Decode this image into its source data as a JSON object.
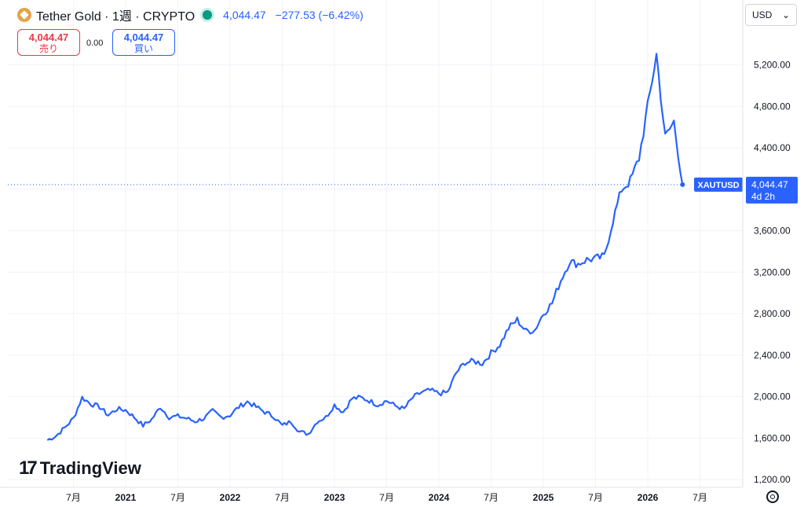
{
  "header": {
    "symbol_title": "Tether Gold · 1週 · CRYPTO",
    "price": "4,044.47",
    "change": "−277.53 (−6.42%)",
    "logo_icon": "tether-gold-logo-icon",
    "status_icon": "market-status-dot-icon"
  },
  "quotes": {
    "sell_value": "4,044.47",
    "sell_label": "売り",
    "spread": "0.00",
    "buy_value": "4,044.47",
    "buy_label": "買い"
  },
  "currency": {
    "label": "USD",
    "icon": "chevron-down-icon"
  },
  "brand": {
    "name": "TradingView",
    "icon": "tradingview-logo-icon"
  },
  "colors": {
    "line": "#2962ff",
    "grid": "#f0f3fa",
    "sell": "#f23645",
    "buy": "#2962ff",
    "last_price_label_bg": "#2962ff"
  },
  "chart_data": {
    "type": "line",
    "series": [
      {
        "name": "XAUTUSD",
        "x": [
          "2020-04",
          "2020-05",
          "2020-06",
          "2020-07",
          "2020-08",
          "2020-09",
          "2020-10",
          "2020-11",
          "2020-12",
          "2021-01",
          "2021-02",
          "2021-03",
          "2021-04",
          "2021-05",
          "2021-06",
          "2021-07",
          "2021-08",
          "2021-09",
          "2021-10",
          "2021-11",
          "2021-12",
          "2022-01",
          "2022-02",
          "2022-03",
          "2022-04",
          "2022-05",
          "2022-06",
          "2022-07",
          "2022-08",
          "2022-09",
          "2022-10",
          "2022-11",
          "2022-12",
          "2023-01",
          "2023-02",
          "2023-03",
          "2023-04",
          "2023-05",
          "2023-06",
          "2023-07",
          "2023-08",
          "2023-09",
          "2023-10",
          "2023-11",
          "2023-12",
          "2024-01",
          "2024-02",
          "2024-03",
          "2024-04",
          "2024-05",
          "2024-06",
          "2024-07",
          "2024-08",
          "2024-09",
          "2024-10",
          "2024-11",
          "2024-12",
          "2025-01",
          "2025-02",
          "2025-03",
          "2025-04",
          "2025-05",
          "2025-06",
          "2025-07",
          "2025-08",
          "2025-09",
          "2025-10",
          "2025-11",
          "2025-12",
          "2026-01",
          "2026-02",
          "2026-03",
          "2026-04",
          "2026-05"
        ],
        "values": [
          1580,
          1620,
          1700,
          1790,
          1990,
          1930,
          1900,
          1820,
          1880,
          1870,
          1800,
          1720,
          1780,
          1900,
          1800,
          1810,
          1790,
          1760,
          1790,
          1860,
          1800,
          1820,
          1900,
          1950,
          1900,
          1850,
          1810,
          1720,
          1760,
          1660,
          1640,
          1760,
          1800,
          1920,
          1850,
          1980,
          1990,
          1960,
          1920,
          1960,
          1910,
          1880,
          1990,
          2040,
          2060,
          2030,
          2040,
          2230,
          2330,
          2340,
          2320,
          2420,
          2500,
          2660,
          2740,
          2630,
          2640,
          2800,
          2900,
          3120,
          3300,
          3280,
          3320,
          3330,
          3350,
          3700,
          4000,
          4080,
          4300,
          4800,
          5300,
          4500,
          4650,
          4044.47
        ]
      }
    ],
    "x_ticks": [
      "7月",
      "2021",
      "7月",
      "2022",
      "7月",
      "2023",
      "7月",
      "2024",
      "7月",
      "2025",
      "7月",
      "2026",
      "7月"
    ],
    "y_ticks": [
      "1,200.00",
      "1,600.00",
      "2,000.00",
      "2,400.00",
      "2,800.00",
      "3,200.00",
      "3,600.00",
      "4,000.00",
      "4,400.00",
      "4,800.00",
      "5,200.00"
    ],
    "ylim": [
      1200,
      5400
    ],
    "last_price": {
      "symbol": "XAUTUSD",
      "value": "4,044.47",
      "countdown": "4d 2h"
    },
    "grid": true
  }
}
